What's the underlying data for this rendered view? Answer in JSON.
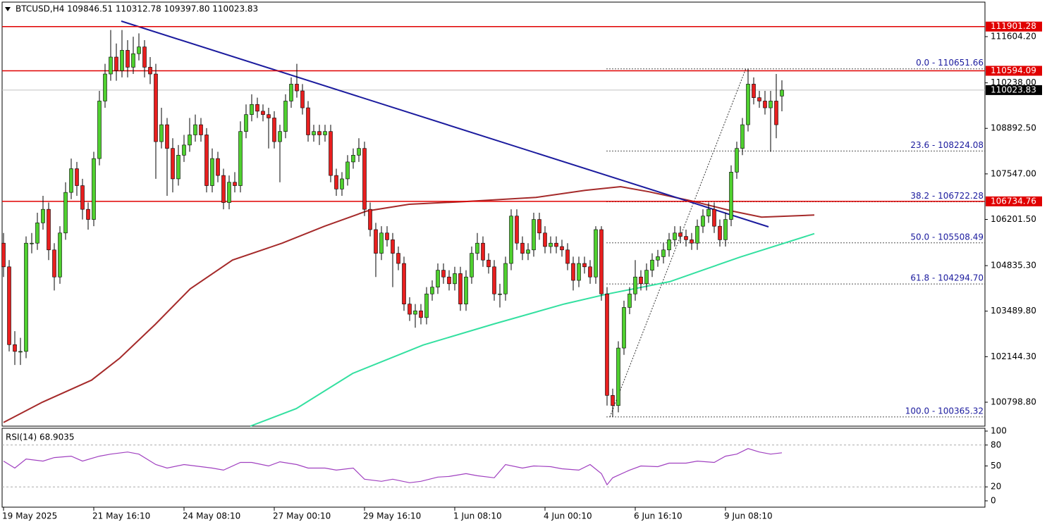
{
  "chart_data": {
    "type": "candlestick",
    "header": "BTCUSD,H4  109846.51 110312.78 109397.80 110023.83",
    "up_color": "#4fd02f",
    "down_color": "#e81f1f",
    "xlim": [
      -0.25,
      174
    ],
    "xticks": [
      {
        "value": 0,
        "label": "19 May 2025"
      },
      {
        "value": 16,
        "label": "21 May 16:10"
      },
      {
        "value": 32,
        "label": "24 May 08:10"
      },
      {
        "value": 48,
        "label": "27 May 00:10"
      },
      {
        "value": 64,
        "label": "29 May 16:10"
      },
      {
        "value": 80,
        "label": "1 Jun 08:10"
      },
      {
        "value": 96,
        "label": "4 Jun 00:10"
      },
      {
        "value": 112,
        "label": "6 Jun 16:10"
      },
      {
        "value": 128,
        "label": "9 Jun 08:10"
      }
    ],
    "ylim": [
      100091,
      112624
    ],
    "yticks": [
      {
        "value": 111604.2,
        "label": "111604.20"
      },
      {
        "value": 110238,
        "label": "110238.00"
      },
      {
        "value": 108892.5,
        "label": "108892.50"
      },
      {
        "value": 107547,
        "label": "107547.00"
      },
      {
        "value": 106201.5,
        "label": "106201.50"
      },
      {
        "value": 104835.3,
        "label": "104835.30"
      },
      {
        "value": 103489.8,
        "label": "103489.80"
      },
      {
        "value": 102144.3,
        "label": "102144.30"
      },
      {
        "value": 100798.8,
        "label": "100798.80"
      }
    ],
    "candles": [
      [
        105500,
        105800,
        104500,
        104800
      ],
      [
        104800,
        105000,
        102300,
        102500
      ],
      [
        102500,
        102900,
        101900,
        102300
      ],
      [
        102300,
        102700,
        101900,
        102300
      ],
      [
        102300,
        105700,
        102100,
        105500
      ],
      [
        105500,
        105800,
        105200,
        105500
      ],
      [
        105500,
        106400,
        105300,
        106100
      ],
      [
        106100,
        106900,
        105900,
        106500
      ],
      [
        106500,
        106700,
        105000,
        105300
      ],
      [
        105300,
        105500,
        104100,
        104500
      ],
      [
        104500,
        106000,
        104300,
        105800
      ],
      [
        105800,
        107300,
        105600,
        107000
      ],
      [
        107000,
        108000,
        106800,
        107700
      ],
      [
        107700,
        107900,
        106900,
        107200
      ],
      [
        107200,
        107400,
        106200,
        106500
      ],
      [
        106500,
        106700,
        105900,
        106200
      ],
      [
        106200,
        108200,
        106000,
        108000
      ],
      [
        108000,
        110000,
        107800,
        109700
      ],
      [
        109700,
        110800,
        109500,
        110500
      ],
      [
        110500,
        111800,
        110300,
        111000
      ],
      [
        111000,
        111400,
        110300,
        110600
      ],
      [
        110600,
        111800,
        110400,
        111200
      ],
      [
        111200,
        111500,
        110400,
        110700
      ],
      [
        110700,
        111600,
        110500,
        111100
      ],
      [
        111100,
        111700,
        110900,
        111300
      ],
      [
        111300,
        111500,
        110400,
        110700
      ],
      [
        110700,
        111000,
        110200,
        110500
      ],
      [
        110500,
        110800,
        107400,
        108500
      ],
      [
        108500,
        109500,
        108300,
        109000
      ],
      [
        109000,
        109200,
        106900,
        108300
      ],
      [
        108300,
        108600,
        107000,
        107400
      ],
      [
        107400,
        108400,
        107200,
        108100
      ],
      [
        108100,
        108700,
        107900,
        108400
      ],
      [
        108400,
        109200,
        108200,
        108700
      ],
      [
        108700,
        109300,
        108500,
        109000
      ],
      [
        109000,
        109200,
        108500,
        108700
      ],
      [
        108700,
        108900,
        107000,
        107200
      ],
      [
        107200,
        108300,
        107000,
        108000
      ],
      [
        108000,
        108200,
        107300,
        107500
      ],
      [
        107500,
        107700,
        106500,
        106700
      ],
      [
        106700,
        107500,
        106500,
        107300
      ],
      [
        107300,
        107600,
        107000,
        107200
      ],
      [
        107200,
        109100,
        107000,
        108800
      ],
      [
        108800,
        109600,
        108600,
        109300
      ],
      [
        109300,
        109900,
        109100,
        109600
      ],
      [
        109600,
        109800,
        109200,
        109400
      ],
      [
        109400,
        109600,
        109100,
        109300
      ],
      [
        109300,
        109500,
        108300,
        109200
      ],
      [
        109200,
        109400,
        108300,
        108500
      ],
      [
        108500,
        109000,
        107300,
        108800
      ],
      [
        108800,
        109900,
        108600,
        109700
      ],
      [
        109700,
        110400,
        109500,
        110200
      ],
      [
        110200,
        110800,
        109800,
        110000
      ],
      [
        110000,
        110200,
        109300,
        109500
      ],
      [
        109500,
        109700,
        108500,
        108700
      ],
      [
        108700,
        109000,
        108500,
        108800
      ],
      [
        108800,
        109000,
        108400,
        108700
      ],
      [
        108700,
        109000,
        108500,
        108800
      ],
      [
        108800,
        109000,
        107300,
        107500
      ],
      [
        107500,
        107700,
        106900,
        107100
      ],
      [
        107100,
        107600,
        106900,
        107400
      ],
      [
        107400,
        108100,
        107200,
        107900
      ],
      [
        107900,
        108300,
        107700,
        108100
      ],
      [
        108100,
        108600,
        107900,
        108300
      ],
      [
        108300,
        108500,
        106300,
        106500
      ],
      [
        106500,
        106700,
        105700,
        105900
      ],
      [
        105900,
        106100,
        104500,
        105200
      ],
      [
        105200,
        106000,
        105000,
        105800
      ],
      [
        105800,
        106000,
        105400,
        105600
      ],
      [
        105600,
        105800,
        104200,
        105200
      ],
      [
        105200,
        105400,
        104700,
        104900
      ],
      [
        104900,
        105100,
        103500,
        103700
      ],
      [
        103700,
        103900,
        103200,
        103400
      ],
      [
        103400,
        103700,
        103000,
        103500
      ],
      [
        103500,
        103700,
        103100,
        103300
      ],
      [
        103300,
        104200,
        103100,
        104000
      ],
      [
        104000,
        104400,
        103800,
        104200
      ],
      [
        104200,
        104900,
        104000,
        104700
      ],
      [
        104700,
        104900,
        104300,
        104500
      ],
      [
        104500,
        104700,
        104100,
        104300
      ],
      [
        104300,
        104800,
        104100,
        104600
      ],
      [
        104600,
        104800,
        103500,
        103700
      ],
      [
        103700,
        104700,
        103500,
        104500
      ],
      [
        104500,
        105400,
        104300,
        105200
      ],
      [
        105200,
        105800,
        105000,
        105500
      ],
      [
        105500,
        105700,
        104800,
        105000
      ],
      [
        105000,
        105200,
        104600,
        104800
      ],
      [
        104800,
        105000,
        103800,
        104000
      ],
      [
        104000,
        104300,
        103600,
        104000
      ],
      [
        104000,
        105100,
        103800,
        104900
      ],
      [
        104900,
        106500,
        104700,
        106300
      ],
      [
        106300,
        106500,
        105300,
        105500
      ],
      [
        105500,
        105700,
        105000,
        105200
      ],
      [
        105200,
        105500,
        105000,
        105300
      ],
      [
        105300,
        106400,
        105100,
        106200
      ],
      [
        106200,
        106400,
        105600,
        105800
      ],
      [
        105800,
        106000,
        105200,
        105400
      ],
      [
        105400,
        105700,
        105200,
        105500
      ],
      [
        105500,
        105700,
        105200,
        105400
      ],
      [
        105400,
        105600,
        105100,
        105300
      ],
      [
        105300,
        105500,
        104700,
        104900
      ],
      [
        104900,
        105100,
        104100,
        104400
      ],
      [
        104400,
        105100,
        104200,
        104900
      ],
      [
        104900,
        105100,
        104600,
        104800
      ],
      [
        104800,
        105000,
        104300,
        104500
      ],
      [
        104500,
        106000,
        104300,
        105900
      ],
      [
        105900,
        106000,
        103800,
        104000
      ],
      [
        104000,
        104200,
        100700,
        101000
      ],
      [
        101000,
        101200,
        100365.32,
        100700
      ],
      [
        100700,
        102600,
        100500,
        102400
      ],
      [
        102400,
        103800,
        102200,
        103600
      ],
      [
        103600,
        104200,
        103400,
        104000
      ],
      [
        104000,
        105000,
        103800,
        104500
      ],
      [
        104500,
        104700,
        104100,
        104300
      ],
      [
        104300,
        104900,
        104100,
        104700
      ],
      [
        104700,
        105200,
        104500,
        105000
      ],
      [
        105000,
        105300,
        104800,
        105100
      ],
      [
        105100,
        105500,
        104900,
        105300
      ],
      [
        105300,
        105800,
        105100,
        105600
      ],
      [
        105600,
        106000,
        105400,
        105800
      ],
      [
        105800,
        106000,
        105500,
        105700
      ],
      [
        105700,
        105900,
        105400,
        105600
      ],
      [
        105600,
        105800,
        105300,
        105500
      ],
      [
        105500,
        106200,
        105300,
        106000
      ],
      [
        106000,
        106500,
        105800,
        106300
      ],
      [
        106300,
        106700,
        106100,
        106500
      ],
      [
        106500,
        106700,
        105800,
        106000
      ],
      [
        106000,
        106200,
        105400,
        105600
      ],
      [
        105600,
        106400,
        105400,
        106200
      ],
      [
        106200,
        107800,
        106000,
        107600
      ],
      [
        107600,
        108500,
        107400,
        108300
      ],
      [
        108300,
        109200,
        108100,
        109000
      ],
      [
        109000,
        110651.66,
        108800,
        110200
      ],
      [
        110200,
        110400,
        109600,
        109800
      ],
      [
        109800,
        110000,
        109500,
        109700
      ],
      [
        109700,
        110000,
        109300,
        109500
      ],
      [
        109500,
        110000,
        108200,
        109700
      ],
      [
        109700,
        110500,
        108600,
        109000
      ],
      [
        109846.51,
        110312.78,
        109397.8,
        110023.83
      ]
    ],
    "lines": [
      {
        "color": "#a52a2a",
        "x": [
          0,
          6.9,
          15.6,
          20.6,
          26.9,
          33.1,
          40.6,
          49.4,
          56.9,
          64.4,
          71.9,
          81.9,
          94.4,
          103.1,
          109.4,
          114.4,
          121.9,
          129.4,
          134.4,
          143.75
        ],
        "values": [
          100200,
          100800,
          101450,
          102100,
          103100,
          104150,
          105000,
          105500,
          106000,
          106450,
          106650,
          106730,
          106850,
          107060,
          107170,
          107020,
          106750,
          106440,
          106270,
          106330
        ]
      },
      {
        "color": "#33e0a0",
        "x": [
          43.75,
          51.9,
          61.9,
          74.4,
          86.9,
          99.4,
          106.9,
          118.1,
          130.6,
          143.75
        ],
        "values": [
          100090,
          100610,
          101650,
          102490,
          103110,
          103700,
          103990,
          104360,
          105090,
          105780
        ]
      },
      {
        "color": "#1b1b9e",
        "x": [
          20.875,
          135.625
        ],
        "values": [
          112062,
          105982
        ]
      }
    ],
    "levels": [
      {
        "value": 111901.28,
        "label": "111901.28"
      },
      {
        "value": 110594.09,
        "label": "110594.09"
      },
      {
        "value": 106734.76,
        "label": "106734.76"
      }
    ],
    "level_color": "#e00000",
    "price": {
      "value": 110023.83,
      "label": "110023.83"
    },
    "fib": {
      "x": [
        107.5,
        131.6
      ],
      "levels": [
        {
          "value": 110651.66,
          "label": "0.0 - 110651.66"
        },
        {
          "value": 108224.08,
          "label": "23.6 - 108224.08"
        },
        {
          "value": 106722.28,
          "label": "38.2 - 106722.28"
        },
        {
          "value": 105508.49,
          "label": "50.0 - 105508.49"
        },
        {
          "value": 104294.7,
          "label": "61.8 - 104294.70"
        },
        {
          "value": 100365.32,
          "label": "100.0 - 100365.32"
        }
      ]
    },
    "rsi": {
      "label": "RSI(14) 68.9035",
      "color": "#a040c0",
      "ylim": [
        0,
        100
      ],
      "yticks": [
        100,
        80,
        50,
        20,
        0
      ],
      "levels": [
        80,
        20
      ],
      "x": [
        0,
        2,
        4,
        7,
        9,
        12,
        14,
        17,
        19,
        22,
        24,
        27,
        29,
        32,
        34,
        37,
        39,
        42,
        44,
        47,
        49,
        52,
        54,
        57,
        59,
        62,
        64,
        67,
        69,
        72,
        74,
        77,
        79,
        82,
        84,
        87,
        89,
        92,
        94,
        97,
        99,
        102,
        104,
        106,
        107,
        108,
        111,
        113,
        116,
        118,
        121,
        123,
        126,
        128,
        130,
        132,
        134,
        136,
        138
      ],
      "values": [
        57,
        47,
        60,
        57,
        62,
        64,
        57,
        64,
        67,
        70,
        67,
        52,
        47,
        52,
        50,
        47,
        44,
        55,
        55,
        50,
        56,
        52,
        47,
        47,
        44,
        47,
        31,
        28,
        31,
        26,
        28,
        34,
        35,
        39,
        36,
        33,
        52,
        47,
        50,
        49,
        46,
        44,
        52,
        39,
        23,
        33,
        44,
        50,
        49,
        54,
        54,
        57,
        55,
        64,
        67,
        75,
        70,
        67,
        68.9035
      ]
    }
  }
}
